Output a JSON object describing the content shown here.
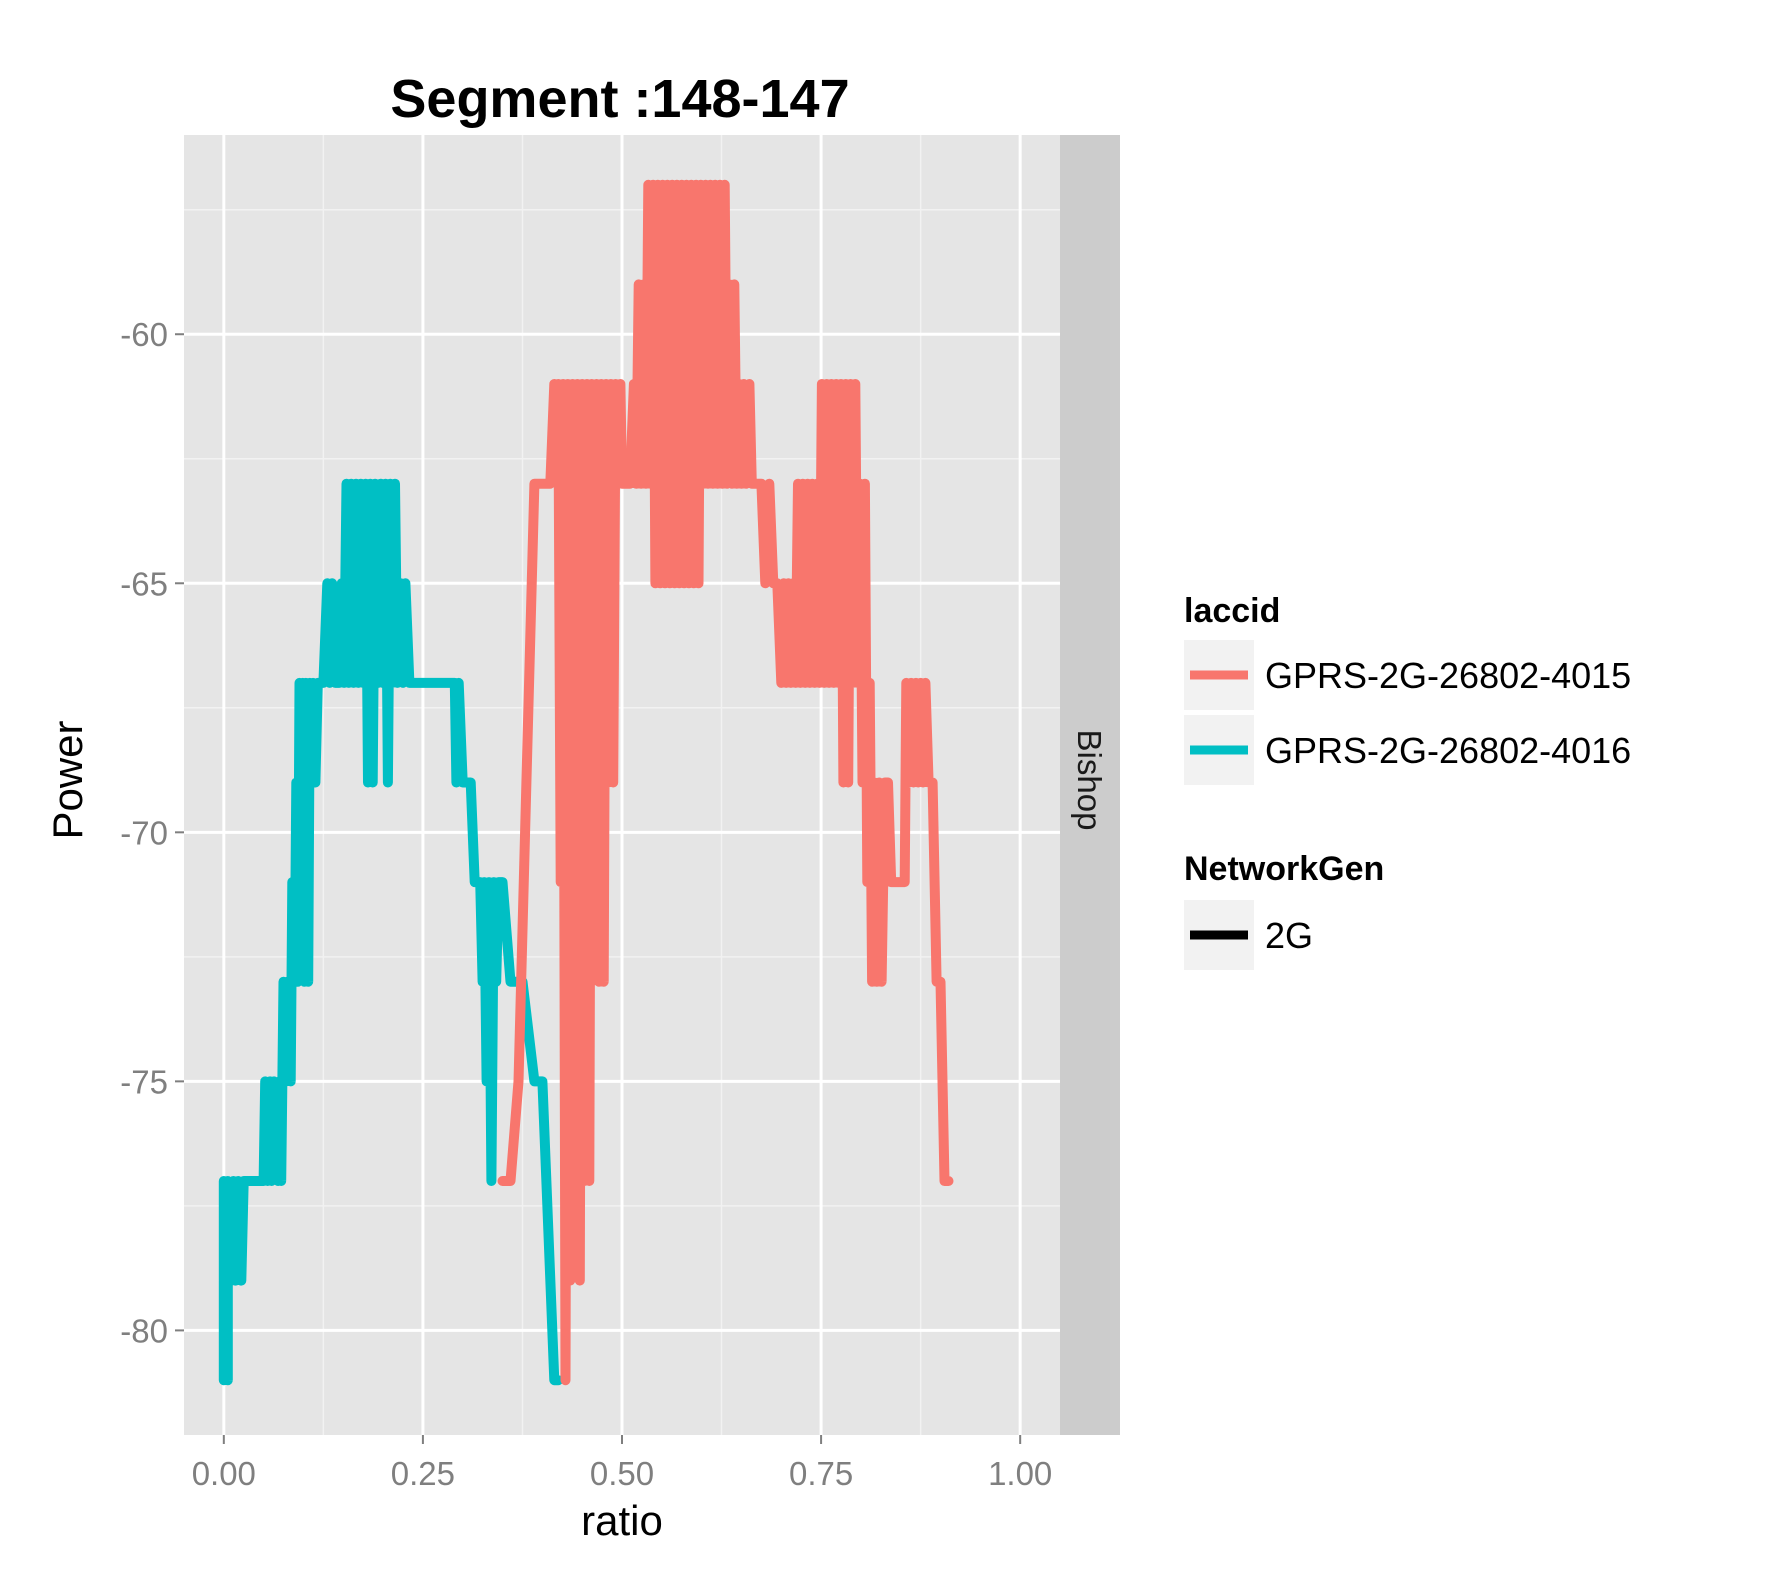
{
  "chart_data": {
    "type": "line",
    "title": "Segment :148-147",
    "xlabel": "ratio",
    "ylabel": "Power",
    "xlim": [
      -0.05,
      1.05
    ],
    "ylim": [
      -82.1,
      -56.0
    ],
    "x_ticks": [
      0,
      0.25,
      0.5,
      0.75,
      1.0
    ],
    "x_tick_labels": [
      "0.00",
      "0.25",
      "0.50",
      "0.75",
      "1.00"
    ],
    "y_ticks": [
      -80,
      -75,
      -70,
      -65,
      -60
    ],
    "y_tick_labels": [
      "-80",
      "-75",
      "-70",
      "-65",
      "-60"
    ],
    "grid": true,
    "facet_label": "Bishop",
    "legend": {
      "position": "right",
      "groups": [
        {
          "title": "laccid",
          "entries": [
            {
              "label": "GPRS-2G-26802-4015",
              "color": "#F8766D"
            },
            {
              "label": "GPRS-2G-26802-4016",
              "color": "#00BFC4"
            }
          ]
        },
        {
          "title": "NetworkGen",
          "entries": [
            {
              "label": "2G",
              "color": "#000000"
            }
          ]
        }
      ]
    },
    "series": [
      {
        "name": "GPRS-2G-26802-4016",
        "color": "#00BFC4",
        "points": [
          [
            0.0,
            -81
          ],
          [
            0.0,
            -77
          ],
          [
            0.005,
            -81
          ],
          [
            0.005,
            -77
          ],
          [
            0.01,
            -79
          ],
          [
            0.012,
            -77
          ],
          [
            0.015,
            -79
          ],
          [
            0.018,
            -77
          ],
          [
            0.022,
            -79
          ],
          [
            0.025,
            -77
          ],
          [
            0.035,
            -77
          ],
          [
            0.05,
            -77
          ],
          [
            0.052,
            -75
          ],
          [
            0.055,
            -77
          ],
          [
            0.058,
            -75
          ],
          [
            0.06,
            -77
          ],
          [
            0.063,
            -75
          ],
          [
            0.068,
            -77
          ],
          [
            0.07,
            -75
          ],
          [
            0.072,
            -77
          ],
          [
            0.075,
            -73
          ],
          [
            0.078,
            -75
          ],
          [
            0.08,
            -73
          ],
          [
            0.084,
            -75
          ],
          [
            0.086,
            -71
          ],
          [
            0.089,
            -73
          ],
          [
            0.091,
            -69
          ],
          [
            0.093,
            -73
          ],
          [
            0.095,
            -67
          ],
          [
            0.097,
            -71
          ],
          [
            0.099,
            -67
          ],
          [
            0.101,
            -73
          ],
          [
            0.103,
            -67
          ],
          [
            0.106,
            -73
          ],
          [
            0.108,
            -67
          ],
          [
            0.11,
            -69
          ],
          [
            0.112,
            -67
          ],
          [
            0.115,
            -69
          ],
          [
            0.118,
            -67
          ],
          [
            0.125,
            -67
          ],
          [
            0.13,
            -65
          ],
          [
            0.133,
            -67
          ],
          [
            0.136,
            -65
          ],
          [
            0.14,
            -67
          ],
          [
            0.145,
            -67
          ],
          [
            0.148,
            -65
          ],
          [
            0.151,
            -67
          ],
          [
            0.154,
            -63
          ],
          [
            0.157,
            -67
          ],
          [
            0.16,
            -63
          ],
          [
            0.163,
            -67
          ],
          [
            0.166,
            -63
          ],
          [
            0.169,
            -67
          ],
          [
            0.172,
            -63
          ],
          [
            0.175,
            -67
          ],
          [
            0.178,
            -63
          ],
          [
            0.181,
            -69
          ],
          [
            0.184,
            -63
          ],
          [
            0.187,
            -69
          ],
          [
            0.19,
            -63
          ],
          [
            0.194,
            -67
          ],
          [
            0.197,
            -63
          ],
          [
            0.2,
            -67
          ],
          [
            0.203,
            -63
          ],
          [
            0.206,
            -69
          ],
          [
            0.209,
            -63
          ],
          [
            0.212,
            -67
          ],
          [
            0.215,
            -63
          ],
          [
            0.218,
            -67
          ],
          [
            0.222,
            -65
          ],
          [
            0.225,
            -67
          ],
          [
            0.228,
            -65
          ],
          [
            0.233,
            -67
          ],
          [
            0.245,
            -67
          ],
          [
            0.275,
            -67
          ],
          [
            0.29,
            -67
          ],
          [
            0.292,
            -69
          ],
          [
            0.295,
            -67
          ],
          [
            0.3,
            -69
          ],
          [
            0.31,
            -69
          ],
          [
            0.315,
            -71
          ],
          [
            0.322,
            -71
          ],
          [
            0.325,
            -73
          ],
          [
            0.327,
            -71
          ],
          [
            0.33,
            -75
          ],
          [
            0.333,
            -71
          ],
          [
            0.336,
            -77
          ],
          [
            0.339,
            -71
          ],
          [
            0.342,
            -73
          ],
          [
            0.345,
            -71
          ],
          [
            0.35,
            -71
          ],
          [
            0.36,
            -73
          ],
          [
            0.375,
            -73
          ],
          [
            0.39,
            -75
          ],
          [
            0.4,
            -75
          ],
          [
            0.415,
            -81
          ],
          [
            0.42,
            -81
          ]
        ]
      },
      {
        "name": "GPRS-2G-26802-4015",
        "color": "#F8766D",
        "points": [
          [
            0.35,
            -77
          ],
          [
            0.36,
            -77
          ],
          [
            0.37,
            -75
          ],
          [
            0.38,
            -69
          ],
          [
            0.39,
            -63
          ],
          [
            0.4,
            -63
          ],
          [
            0.41,
            -63
          ],
          [
            0.415,
            -61
          ],
          [
            0.418,
            -63
          ],
          [
            0.42,
            -61
          ],
          [
            0.423,
            -71
          ],
          [
            0.426,
            -61
          ],
          [
            0.429,
            -81
          ],
          [
            0.432,
            -61
          ],
          [
            0.435,
            -79
          ],
          [
            0.438,
            -61
          ],
          [
            0.441,
            -77
          ],
          [
            0.444,
            -61
          ],
          [
            0.447,
            -79
          ],
          [
            0.45,
            -61
          ],
          [
            0.453,
            -77
          ],
          [
            0.456,
            -61
          ],
          [
            0.459,
            -77
          ],
          [
            0.462,
            -61
          ],
          [
            0.465,
            -63
          ],
          [
            0.468,
            -61
          ],
          [
            0.471,
            -73
          ],
          [
            0.474,
            -61
          ],
          [
            0.477,
            -73
          ],
          [
            0.48,
            -61
          ],
          [
            0.483,
            -69
          ],
          [
            0.486,
            -61
          ],
          [
            0.489,
            -69
          ],
          [
            0.492,
            -61
          ],
          [
            0.495,
            -63
          ],
          [
            0.498,
            -61
          ],
          [
            0.5,
            -63
          ],
          [
            0.51,
            -63
          ],
          [
            0.515,
            -61
          ],
          [
            0.518,
            -63
          ],
          [
            0.521,
            -59
          ],
          [
            0.524,
            -63
          ],
          [
            0.527,
            -59
          ],
          [
            0.53,
            -63
          ],
          [
            0.533,
            -57
          ],
          [
            0.536,
            -63
          ],
          [
            0.539,
            -57
          ],
          [
            0.542,
            -65
          ],
          [
            0.545,
            -57
          ],
          [
            0.548,
            -65
          ],
          [
            0.551,
            -57
          ],
          [
            0.554,
            -65
          ],
          [
            0.557,
            -57
          ],
          [
            0.56,
            -65
          ],
          [
            0.563,
            -57
          ],
          [
            0.566,
            -65
          ],
          [
            0.569,
            -57
          ],
          [
            0.572,
            -65
          ],
          [
            0.575,
            -57
          ],
          [
            0.578,
            -65
          ],
          [
            0.581,
            -57
          ],
          [
            0.584,
            -65
          ],
          [
            0.587,
            -57
          ],
          [
            0.59,
            -65
          ],
          [
            0.593,
            -57
          ],
          [
            0.596,
            -65
          ],
          [
            0.599,
            -57
          ],
          [
            0.602,
            -63
          ],
          [
            0.605,
            -57
          ],
          [
            0.608,
            -63
          ],
          [
            0.611,
            -57
          ],
          [
            0.614,
            -63
          ],
          [
            0.617,
            -57
          ],
          [
            0.62,
            -63
          ],
          [
            0.623,
            -57
          ],
          [
            0.626,
            -63
          ],
          [
            0.629,
            -57
          ],
          [
            0.632,
            -63
          ],
          [
            0.635,
            -59
          ],
          [
            0.638,
            -63
          ],
          [
            0.641,
            -59
          ],
          [
            0.644,
            -63
          ],
          [
            0.647,
            -61
          ],
          [
            0.65,
            -63
          ],
          [
            0.653,
            -61
          ],
          [
            0.656,
            -63
          ],
          [
            0.66,
            -61
          ],
          [
            0.663,
            -63
          ],
          [
            0.67,
            -63
          ],
          [
            0.675,
            -63
          ],
          [
            0.68,
            -65
          ],
          [
            0.685,
            -63
          ],
          [
            0.69,
            -65
          ],
          [
            0.695,
            -65
          ],
          [
            0.7,
            -67
          ],
          [
            0.703,
            -65
          ],
          [
            0.706,
            -67
          ],
          [
            0.709,
            -65
          ],
          [
            0.712,
            -67
          ],
          [
            0.715,
            -65
          ],
          [
            0.718,
            -67
          ],
          [
            0.721,
            -63
          ],
          [
            0.724,
            -67
          ],
          [
            0.727,
            -63
          ],
          [
            0.73,
            -67
          ],
          [
            0.733,
            -63
          ],
          [
            0.736,
            -67
          ],
          [
            0.739,
            -63
          ],
          [
            0.742,
            -67
          ],
          [
            0.745,
            -63
          ],
          [
            0.748,
            -67
          ],
          [
            0.751,
            -61
          ],
          [
            0.754,
            -67
          ],
          [
            0.757,
            -61
          ],
          [
            0.76,
            -67
          ],
          [
            0.763,
            -61
          ],
          [
            0.766,
            -67
          ],
          [
            0.769,
            -61
          ],
          [
            0.772,
            -67
          ],
          [
            0.775,
            -61
          ],
          [
            0.778,
            -69
          ],
          [
            0.781,
            -61
          ],
          [
            0.784,
            -69
          ],
          [
            0.787,
            -61
          ],
          [
            0.79,
            -67
          ],
          [
            0.793,
            -61
          ],
          [
            0.796,
            -67
          ],
          [
            0.799,
            -63
          ],
          [
            0.802,
            -69
          ],
          [
            0.805,
            -63
          ],
          [
            0.808,
            -71
          ],
          [
            0.811,
            -67
          ],
          [
            0.814,
            -73
          ],
          [
            0.817,
            -69
          ],
          [
            0.82,
            -73
          ],
          [
            0.823,
            -69
          ],
          [
            0.826,
            -73
          ],
          [
            0.83,
            -69
          ],
          [
            0.834,
            -69
          ],
          [
            0.838,
            -71
          ],
          [
            0.85,
            -71
          ],
          [
            0.855,
            -71
          ],
          [
            0.857,
            -67
          ],
          [
            0.86,
            -69
          ],
          [
            0.863,
            -67
          ],
          [
            0.866,
            -69
          ],
          [
            0.869,
            -67
          ],
          [
            0.872,
            -69
          ],
          [
            0.875,
            -67
          ],
          [
            0.878,
            -69
          ],
          [
            0.881,
            -67
          ],
          [
            0.885,
            -69
          ],
          [
            0.89,
            -69
          ],
          [
            0.895,
            -73
          ],
          [
            0.9,
            -73
          ],
          [
            0.905,
            -77
          ],
          [
            0.91,
            -77
          ]
        ]
      }
    ]
  }
}
